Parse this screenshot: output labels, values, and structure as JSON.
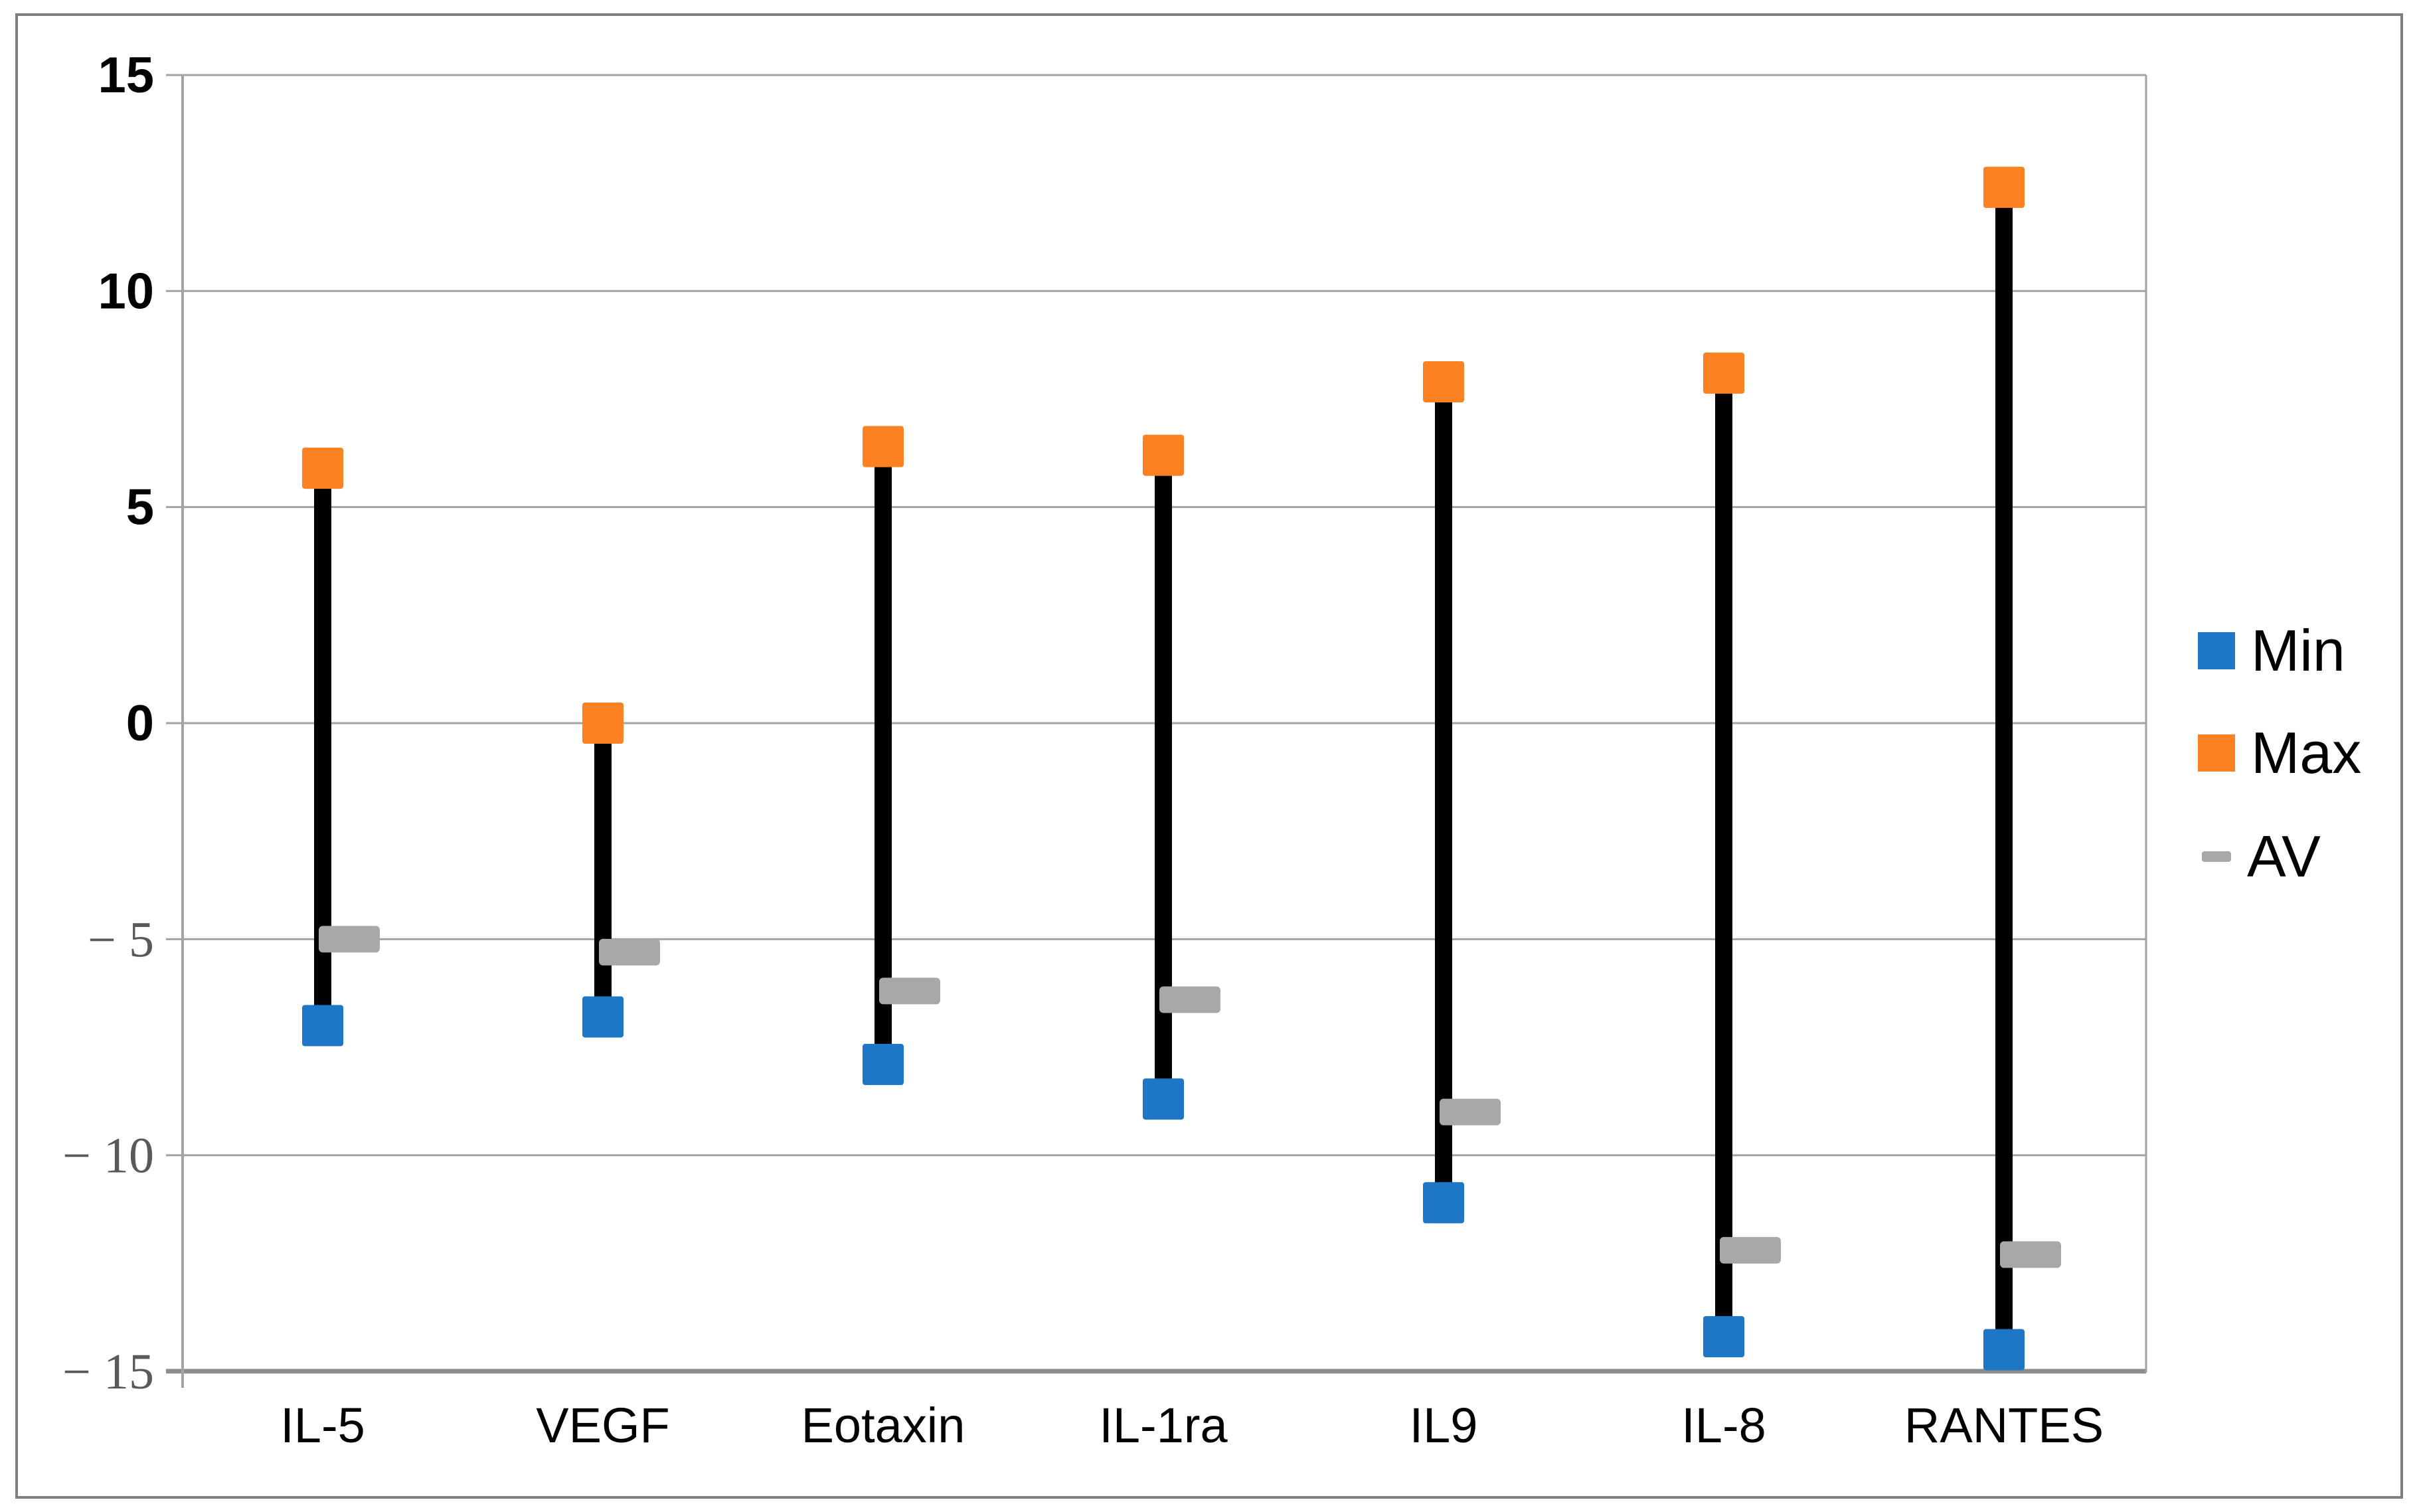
{
  "figure": {
    "background": "#FFFFFF",
    "border_color": "#7F7F7F"
  },
  "axes": {
    "grid_color": "#A3A3A3",
    "baseline_color": "#8C8C8C",
    "tick_label_color_positive": "#000000",
    "tick_label_color_negative": "#595959",
    "category_label_color": "#000000",
    "minus_sign": "−"
  },
  "legend": {
    "position": "right"
  },
  "chart_data": {
    "type": "bar",
    "subtype": "high-low-range",
    "title": "",
    "xlabel": "",
    "ylabel": "",
    "categories": [
      "IL-5",
      "VEGF",
      "Eotaxin",
      "IL-1ra",
      "IL9",
      "IL-8",
      "RANTES"
    ],
    "series": [
      {
        "name": "Min",
        "marker": "square",
        "color": "#1D76C6",
        "values": [
          -7.0,
          -6.8,
          -7.9,
          -8.7,
          -11.1,
          -14.2,
          -14.5
        ]
      },
      {
        "name": "Max",
        "marker": "square",
        "color": "#FB8123",
        "values": [
          5.9,
          0.0,
          6.4,
          6.2,
          7.9,
          8.1,
          12.4
        ]
      },
      {
        "name": "AV",
        "marker": "dash",
        "color": "#A8A8A8",
        "values": [
          -5.0,
          -5.3,
          -6.2,
          -6.4,
          -9.0,
          -12.2,
          -12.3
        ]
      }
    ],
    "connector_color": "#000000",
    "ylim": [
      -15,
      15
    ],
    "yticks": [
      15,
      10,
      5,
      0,
      -5,
      -10,
      -15
    ],
    "grid": true,
    "legend_position": "right"
  }
}
